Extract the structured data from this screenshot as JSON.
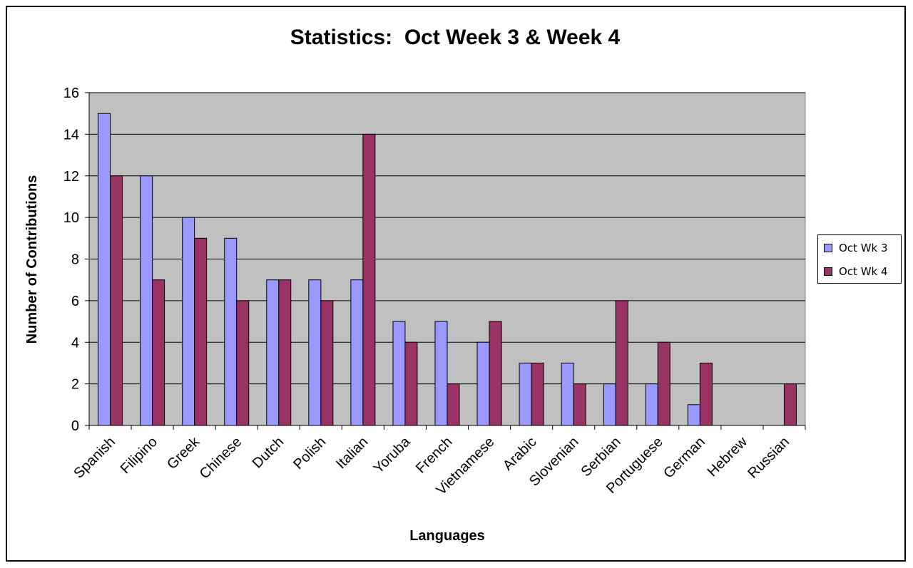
{
  "chart_data": {
    "type": "bar",
    "title": "Statistics:  Oct Week 3 & Week 4",
    "xlabel": "Languages",
    "ylabel": "Number of Contributions",
    "ylim": [
      0,
      16
    ],
    "yticks": [
      "0",
      "2",
      "4",
      "6",
      "8",
      "10",
      "12",
      "14",
      "16"
    ],
    "grid": true,
    "legend_position": "right",
    "categories": [
      "Spanish",
      "Filipino",
      "Greek",
      "Chinese",
      "Dutch",
      "Polish",
      "Italian",
      "Yoruba",
      "French",
      "Vietnamese",
      "Arabic",
      "Slovenian",
      "Serbian",
      "Portuguese",
      "German",
      "Hebrew",
      "Russian"
    ],
    "series": [
      {
        "name": "Oct Wk 3",
        "color": "#9999ff",
        "values": [
          15,
          12,
          10,
          9,
          7,
          7,
          7,
          5,
          5,
          4,
          3,
          3,
          2,
          2,
          1,
          0,
          0
        ]
      },
      {
        "name": "Oct Wk 4",
        "color": "#993366",
        "values": [
          12,
          7,
          9,
          6,
          7,
          6,
          14,
          4,
          2,
          5,
          3,
          2,
          6,
          4,
          3,
          0,
          2
        ]
      }
    ],
    "plot_background": "#c0c0c0"
  }
}
